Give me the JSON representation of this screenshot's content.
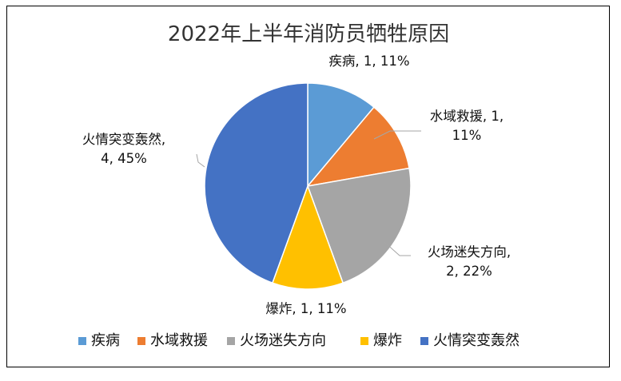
{
  "chart_data": {
    "type": "pie",
    "title": "2022年上半年消防员牺牲原因",
    "categories": [
      "疾病",
      "水域救援",
      "火场迷失方向",
      "爆炸",
      "火情突变轰然"
    ],
    "values": [
      1,
      1,
      2,
      1,
      4
    ],
    "percents": [
      "11%",
      "11%",
      "22%",
      "11%",
      "45%"
    ],
    "colors": [
      "#5b9bd5",
      "#ed7d31",
      "#a5a5a5",
      "#ffc000",
      "#4472c4"
    ],
    "data_labels": [
      [
        "疾病, 1, 11%"
      ],
      [
        "水域救援, 1,",
        "11%"
      ],
      [
        "火场迷失方向,",
        "2, 22%"
      ],
      [
        "爆炸, 1, 11%"
      ],
      [
        "火情突变轰然,",
        "4, 45%"
      ]
    ],
    "legend": [
      "疾病",
      "水域救援",
      "火场迷失方向",
      "爆炸",
      "火情突变轰然"
    ],
    "legend_position": "bottom"
  }
}
